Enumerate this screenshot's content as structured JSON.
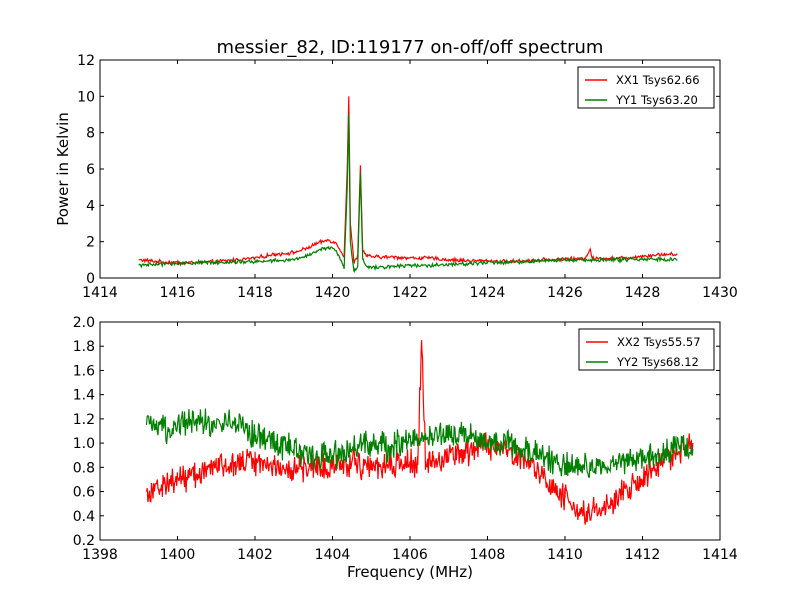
{
  "figure": {
    "title": "messier_82, ID:119177 on-off/off spectrum",
    "xlabel": "Frequency (MHz)"
  },
  "chart_data": [
    {
      "type": "line",
      "title": "messier_82, ID:119177 on-off/off spectrum",
      "xlabel": "",
      "ylabel": "Power in Kelvin",
      "xlim": [
        1414,
        1430
      ],
      "ylim": [
        0,
        12
      ],
      "xticks": [
        "1414",
        "1416",
        "1418",
        "1420",
        "1422",
        "1424",
        "1426",
        "1428",
        "1430"
      ],
      "yticks": [
        "0",
        "2",
        "4",
        "6",
        "8",
        "10",
        "12"
      ],
      "grid": false,
      "legend_position": "top-right",
      "series": [
        {
          "name": "XX1 Tsys62.66",
          "color": "#ff0000",
          "x": [
            1415.0,
            1415.5,
            1416.0,
            1416.5,
            1417.0,
            1417.5,
            1418.0,
            1418.5,
            1419.0,
            1419.3,
            1419.6,
            1419.9,
            1420.1,
            1420.3,
            1420.38,
            1420.42,
            1420.46,
            1420.55,
            1420.65,
            1420.72,
            1420.78,
            1420.9,
            1421.2,
            1421.6,
            1422.0,
            1422.5,
            1423.0,
            1423.5,
            1424.0,
            1424.5,
            1425.0,
            1425.5,
            1426.0,
            1426.5,
            1426.65,
            1426.7,
            1426.75,
            1427.0,
            1427.5,
            1428.0,
            1428.5,
            1428.9
          ],
          "y": [
            1.0,
            0.9,
            0.85,
            0.85,
            0.9,
            1.0,
            1.1,
            1.3,
            1.4,
            1.6,
            1.9,
            2.1,
            1.9,
            1.2,
            6.0,
            10.0,
            3.0,
            0.9,
            1.2,
            6.2,
            1.5,
            1.2,
            1.15,
            1.15,
            1.1,
            1.1,
            1.0,
            0.95,
            0.95,
            0.9,
            0.95,
            1.0,
            1.05,
            1.05,
            1.6,
            1.1,
            1.05,
            1.1,
            1.1,
            1.2,
            1.3,
            1.3
          ]
        },
        {
          "name": "YY1 Tsys63.20",
          "color": "#008000",
          "x": [
            1415.0,
            1415.5,
            1416.0,
            1416.5,
            1417.0,
            1417.5,
            1418.0,
            1418.5,
            1419.0,
            1419.3,
            1419.6,
            1419.9,
            1420.1,
            1420.3,
            1420.38,
            1420.42,
            1420.46,
            1420.55,
            1420.65,
            1420.72,
            1420.78,
            1420.9,
            1421.2,
            1421.6,
            1422.0,
            1422.5,
            1423.0,
            1423.5,
            1424.0,
            1424.5,
            1425.0,
            1425.5,
            1426.0,
            1426.5,
            1427.0,
            1427.5,
            1428.0,
            1428.5,
            1428.9
          ],
          "y": [
            0.7,
            0.75,
            0.8,
            0.85,
            0.85,
            0.9,
            0.9,
            0.95,
            1.0,
            1.2,
            1.5,
            1.7,
            1.5,
            0.5,
            5.0,
            9.0,
            2.0,
            0.4,
            0.6,
            5.8,
            1.0,
            0.6,
            0.6,
            0.65,
            0.7,
            0.7,
            0.75,
            0.8,
            0.85,
            0.85,
            0.9,
            0.95,
            1.0,
            1.0,
            1.0,
            1.0,
            1.05,
            1.05,
            1.0
          ]
        }
      ]
    },
    {
      "type": "line",
      "title": "",
      "xlabel": "Frequency (MHz)",
      "ylabel": "",
      "xlim": [
        1398,
        1414
      ],
      "ylim": [
        0.2,
        2.0
      ],
      "xticks": [
        "1398",
        "1400",
        "1402",
        "1404",
        "1406",
        "1408",
        "1410",
        "1412",
        "1414"
      ],
      "yticks": [
        "0.2",
        "0.4",
        "0.6",
        "0.8",
        "1.0",
        "1.2",
        "1.4",
        "1.6",
        "1.8",
        "2.0"
      ],
      "grid": false,
      "legend_position": "top-right",
      "series": [
        {
          "name": "XX2 Tsys55.57",
          "color": "#ff0000",
          "x": [
            1399.2,
            1399.6,
            1400.0,
            1400.5,
            1401.0,
            1401.5,
            1402.0,
            1402.5,
            1403.0,
            1403.5,
            1404.0,
            1404.5,
            1405.0,
            1405.5,
            1406.0,
            1406.2,
            1406.3,
            1406.4,
            1406.6,
            1407.0,
            1407.5,
            1408.0,
            1408.5,
            1409.0,
            1409.5,
            1410.0,
            1410.3,
            1410.6,
            1410.9,
            1411.2,
            1411.5,
            1412.0,
            1412.5,
            1413.0,
            1413.3
          ],
          "y": [
            0.6,
            0.65,
            0.7,
            0.75,
            0.8,
            0.85,
            0.85,
            0.82,
            0.78,
            0.8,
            0.82,
            0.85,
            0.8,
            0.82,
            0.85,
            0.82,
            1.85,
            0.85,
            0.85,
            0.88,
            0.92,
            0.98,
            0.95,
            0.85,
            0.7,
            0.55,
            0.45,
            0.42,
            0.45,
            0.5,
            0.58,
            0.7,
            0.85,
            0.95,
            1.0
          ]
        },
        {
          "name": "YY2 Tsys68.12",
          "color": "#008000",
          "x": [
            1399.2,
            1399.6,
            1400.0,
            1400.5,
            1401.0,
            1401.5,
            1402.0,
            1402.5,
            1403.0,
            1403.5,
            1404.0,
            1404.5,
            1405.0,
            1405.5,
            1406.0,
            1406.5,
            1407.0,
            1407.5,
            1408.0,
            1408.5,
            1409.0,
            1409.5,
            1410.0,
            1410.5,
            1411.0,
            1411.5,
            1412.0,
            1412.5,
            1413.0,
            1413.3
          ],
          "y": [
            1.15,
            1.1,
            1.15,
            1.2,
            1.15,
            1.2,
            1.05,
            1.0,
            0.95,
            0.9,
            0.9,
            0.95,
            1.0,
            0.95,
            1.05,
            1.05,
            1.1,
            1.05,
            1.0,
            1.0,
            0.95,
            0.88,
            0.82,
            0.8,
            0.8,
            0.85,
            0.88,
            0.92,
            0.98,
            0.95
          ]
        }
      ]
    }
  ]
}
